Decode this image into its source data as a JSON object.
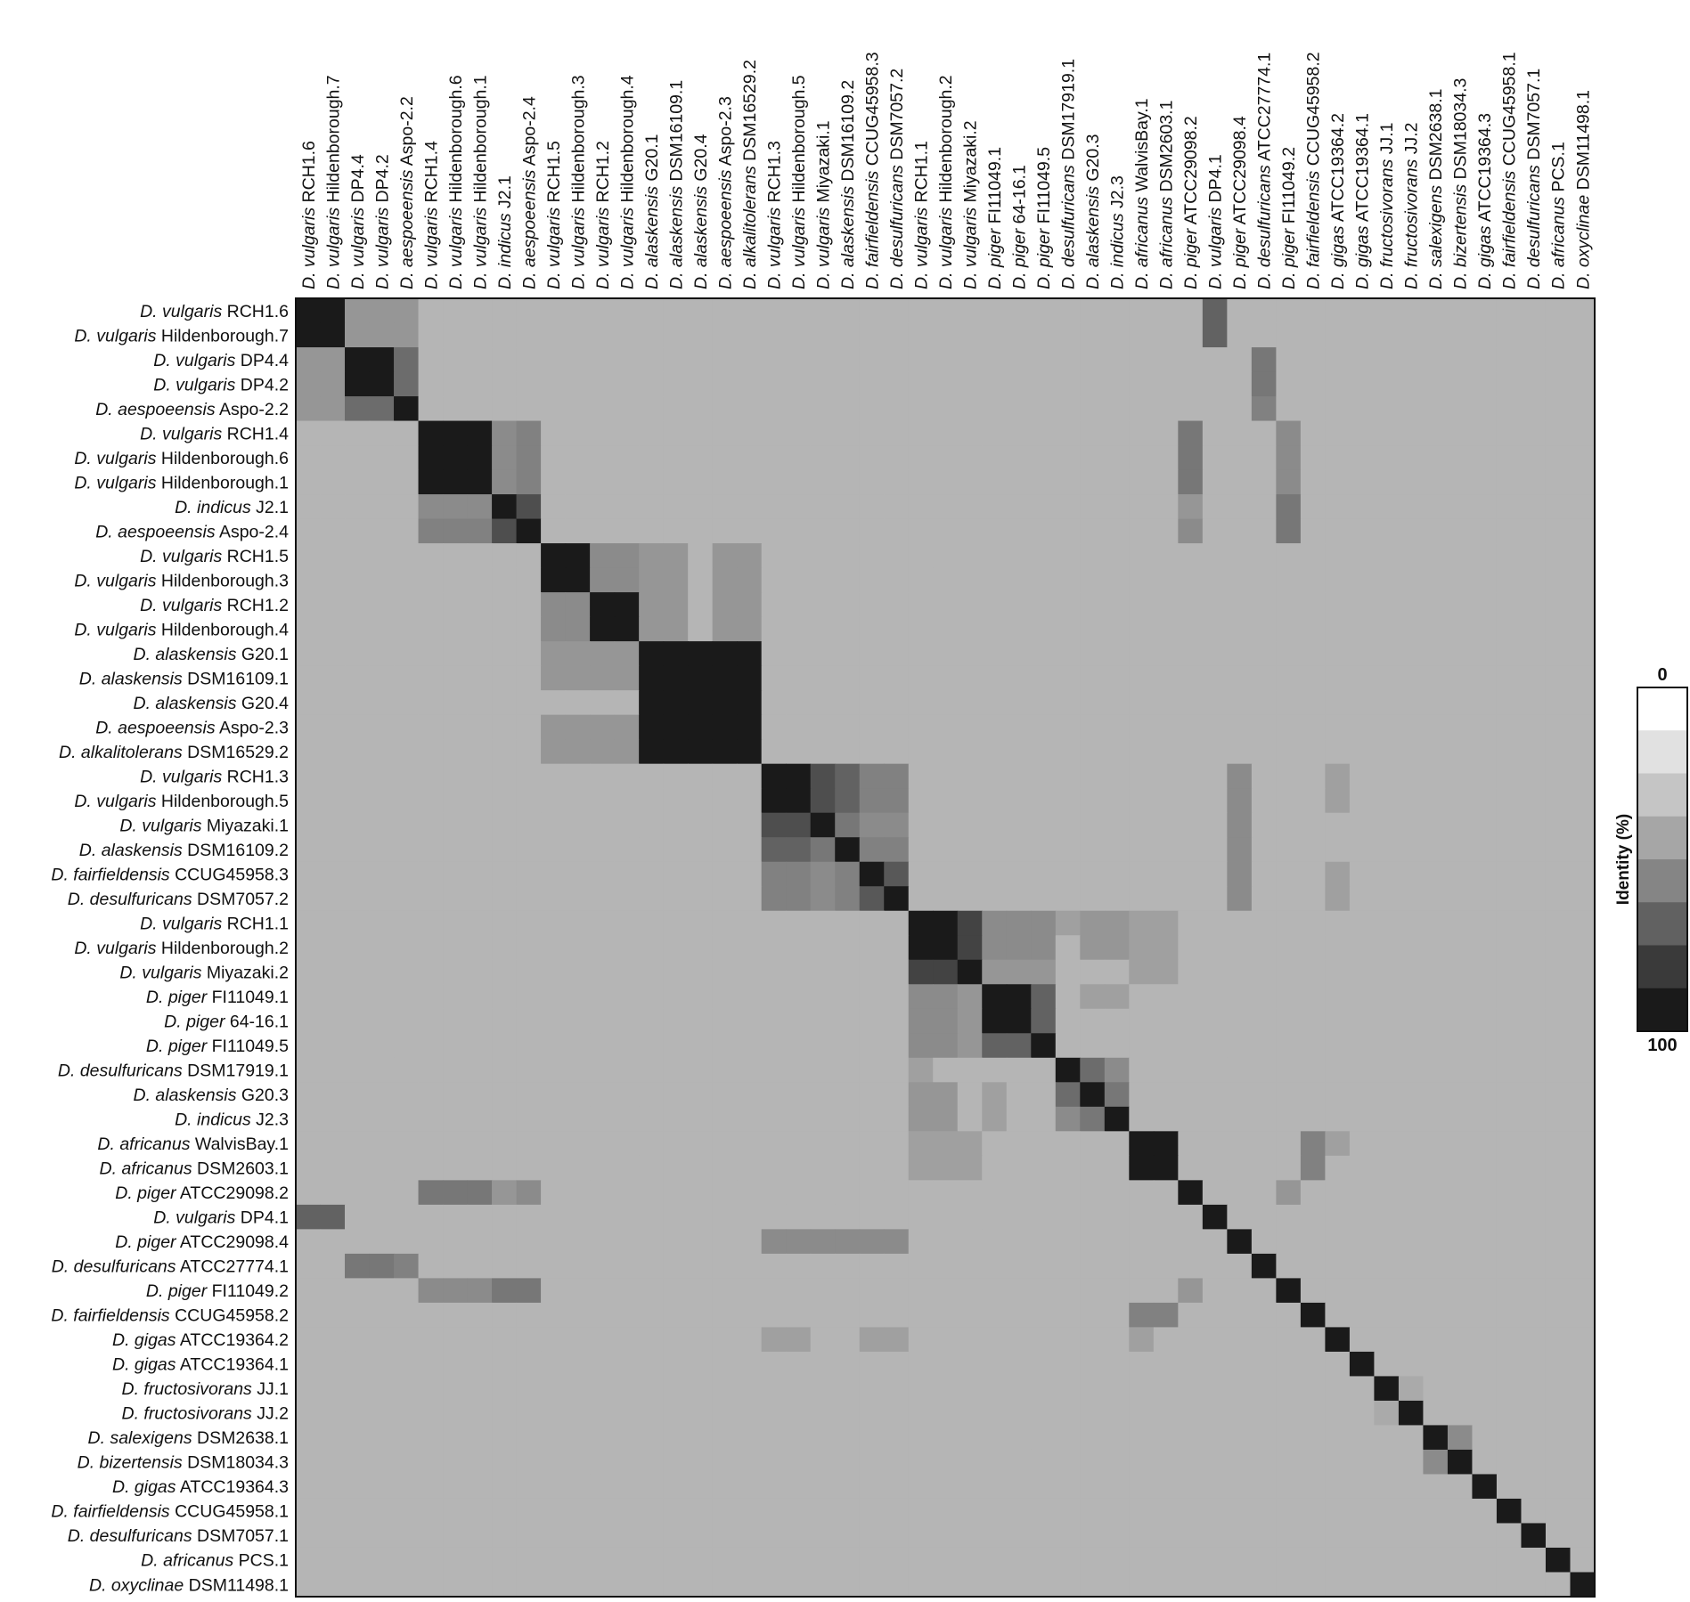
{
  "chart_data": {
    "type": "heatmap",
    "title": "",
    "xlabel": "",
    "ylabel": "",
    "labels": [
      {
        "genus": "D. vulgaris",
        "strain": "RCH1.6"
      },
      {
        "genus": "D. vulgaris",
        "strain": "Hildenborough.7"
      },
      {
        "genus": "D. vulgaris",
        "strain": "DP4.4"
      },
      {
        "genus": "D. vulgaris",
        "strain": "DP4.2"
      },
      {
        "genus": "D. aespoeensis",
        "strain": "Aspo-2.2"
      },
      {
        "genus": "D. vulgaris",
        "strain": "RCH1.4"
      },
      {
        "genus": "D. vulgaris",
        "strain": "Hildenborough.6"
      },
      {
        "genus": "D. vulgaris",
        "strain": "Hildenborough.1"
      },
      {
        "genus": "D. indicus",
        "strain": "J2.1"
      },
      {
        "genus": "D. aespoeensis",
        "strain": "Aspo-2.4"
      },
      {
        "genus": "D. vulgaris",
        "strain": "RCH1.5"
      },
      {
        "genus": "D. vulgaris",
        "strain": "Hildenborough.3"
      },
      {
        "genus": "D. vulgaris",
        "strain": "RCH1.2"
      },
      {
        "genus": "D. vulgaris",
        "strain": "Hildenborough.4"
      },
      {
        "genus": "D. alaskensis",
        "strain": "G20.1"
      },
      {
        "genus": "D. alaskensis",
        "strain": "DSM16109.1"
      },
      {
        "genus": "D. alaskensis",
        "strain": "G20.4"
      },
      {
        "genus": "D. aespoeensis",
        "strain": "Aspo-2.3"
      },
      {
        "genus": "D. alkalitolerans",
        "strain": "DSM16529.2"
      },
      {
        "genus": "D. vulgaris",
        "strain": "RCH1.3"
      },
      {
        "genus": "D. vulgaris",
        "strain": "Hildenborough.5"
      },
      {
        "genus": "D. vulgaris",
        "strain": "Miyazaki.1"
      },
      {
        "genus": "D. alaskensis",
        "strain": "DSM16109.2"
      },
      {
        "genus": "D. fairfieldensis",
        "strain": "CCUG45958.3"
      },
      {
        "genus": "D. desulfuricans",
        "strain": "DSM7057.2"
      },
      {
        "genus": "D. vulgaris",
        "strain": "RCH1.1"
      },
      {
        "genus": "D. vulgaris",
        "strain": "Hildenborough.2"
      },
      {
        "genus": "D. vulgaris",
        "strain": "Miyazaki.2"
      },
      {
        "genus": "D. piger",
        "strain": "FI11049.1"
      },
      {
        "genus": "D. piger",
        "strain": "64-16.1"
      },
      {
        "genus": "D. piger",
        "strain": "FI11049.5"
      },
      {
        "genus": "D. desulfuricans",
        "strain": "DSM17919.1"
      },
      {
        "genus": "D. alaskensis",
        "strain": "G20.3"
      },
      {
        "genus": "D. indicus",
        "strain": "J2.3"
      },
      {
        "genus": "D. africanus",
        "strain": "WalvisBay.1"
      },
      {
        "genus": "D. africanus",
        "strain": "DSM2603.1"
      },
      {
        "genus": "D. piger",
        "strain": "ATCC29098.2"
      },
      {
        "genus": "D. vulgaris",
        "strain": "DP4.1"
      },
      {
        "genus": "D. piger",
        "strain": "ATCC29098.4"
      },
      {
        "genus": "D. desulfuricans",
        "strain": "ATCC27774.1"
      },
      {
        "genus": "D. piger",
        "strain": "FI11049.2"
      },
      {
        "genus": "D. fairfieldensis",
        "strain": "CCUG45958.2"
      },
      {
        "genus": "D. gigas",
        "strain": "ATCC19364.2"
      },
      {
        "genus": "D. gigas",
        "strain": "ATCC19364.1"
      },
      {
        "genus": "D. fructosivorans",
        "strain": "JJ.1"
      },
      {
        "genus": "D. fructosivorans",
        "strain": "JJ.2"
      },
      {
        "genus": "D. salexigens",
        "strain": "DSM2638.1"
      },
      {
        "genus": "D. bizertensis",
        "strain": "DSM18034.3"
      },
      {
        "genus": "D. gigas",
        "strain": "ATCC19364.3"
      },
      {
        "genus": "D. fairfieldensis",
        "strain": "CCUG45958.1"
      },
      {
        "genus": "D. desulfuricans",
        "strain": "DSM7057.1"
      },
      {
        "genus": "D. africanus",
        "strain": "PCS.1"
      },
      {
        "genus": "D. oxyclinae",
        "strain": "DSM11498.1"
      }
    ],
    "background_identity": 25,
    "default_block_identity": 30,
    "blocks": [
      {
        "range": [
          0,
          1
        ],
        "value": 100
      },
      {
        "range": [
          2,
          4
        ],
        "value": 100
      },
      {
        "range": [
          5,
          9
        ],
        "value": 100
      },
      {
        "range": [
          10,
          13
        ],
        "value": 100
      },
      {
        "range": [
          14,
          18
        ],
        "value": 100
      },
      {
        "range": [
          19,
          24
        ],
        "value": 100
      },
      {
        "range": [
          25,
          30
        ],
        "value": 100
      },
      {
        "range": [
          31,
          33
        ],
        "value": 100
      },
      {
        "range": [
          34,
          35
        ],
        "value": 100
      }
    ],
    "pairs": [
      [
        0,
        2,
        40
      ],
      [
        0,
        3,
        40
      ],
      [
        0,
        4,
        40
      ],
      [
        1,
        2,
        40
      ],
      [
        1,
        3,
        40
      ],
      [
        1,
        4,
        40
      ],
      [
        2,
        4,
        60
      ],
      [
        3,
        4,
        60
      ],
      [
        5,
        8,
        45
      ],
      [
        5,
        9,
        50
      ],
      [
        6,
        8,
        45
      ],
      [
        6,
        9,
        50
      ],
      [
        7,
        8,
        45
      ],
      [
        7,
        9,
        50
      ],
      [
        8,
        9,
        75
      ],
      [
        10,
        12,
        45
      ],
      [
        10,
        13,
        45
      ],
      [
        11,
        12,
        45
      ],
      [
        11,
        13,
        45
      ],
      [
        10,
        14,
        40
      ],
      [
        10,
        15,
        40
      ],
      [
        11,
        14,
        40
      ],
      [
        11,
        15,
        40
      ],
      [
        12,
        14,
        40
      ],
      [
        12,
        15,
        40
      ],
      [
        13,
        14,
        40
      ],
      [
        13,
        15,
        40
      ],
      [
        10,
        17,
        40
      ],
      [
        10,
        18,
        40
      ],
      [
        11,
        17,
        40
      ],
      [
        11,
        18,
        40
      ],
      [
        12,
        17,
        40
      ],
      [
        12,
        18,
        40
      ],
      [
        13,
        17,
        40
      ],
      [
        13,
        18,
        40
      ],
      [
        19,
        21,
        75
      ],
      [
        19,
        22,
        65
      ],
      [
        20,
        21,
        75
      ],
      [
        20,
        22,
        65
      ],
      [
        21,
        22,
        55
      ],
      [
        19,
        23,
        50
      ],
      [
        19,
        24,
        50
      ],
      [
        20,
        23,
        50
      ],
      [
        20,
        24,
        50
      ],
      [
        21,
        23,
        45
      ],
      [
        21,
        24,
        45
      ],
      [
        22,
        23,
        50
      ],
      [
        22,
        24,
        50
      ],
      [
        23,
        24,
        70
      ],
      [
        25,
        27,
        80
      ],
      [
        26,
        27,
        80
      ],
      [
        25,
        28,
        45
      ],
      [
        25,
        29,
        45
      ],
      [
        25,
        30,
        45
      ],
      [
        26,
        28,
        45
      ],
      [
        26,
        29,
        45
      ],
      [
        26,
        30,
        45
      ],
      [
        27,
        28,
        40
      ],
      [
        27,
        29,
        40
      ],
      [
        27,
        30,
        40
      ],
      [
        28,
        30,
        65
      ],
      [
        29,
        30,
        65
      ],
      [
        25,
        31,
        35
      ],
      [
        25,
        32,
        40
      ],
      [
        25,
        33,
        40
      ],
      [
        26,
        32,
        40
      ],
      [
        26,
        33,
        40
      ],
      [
        28,
        32,
        35
      ],
      [
        28,
        33,
        35
      ],
      [
        25,
        34,
        35
      ],
      [
        25,
        35,
        35
      ],
      [
        26,
        34,
        35
      ],
      [
        26,
        35,
        35
      ],
      [
        27,
        34,
        35
      ],
      [
        27,
        35,
        35
      ],
      [
        31,
        32,
        60
      ],
      [
        31,
        33,
        45
      ],
      [
        32,
        33,
        55
      ],
      [
        0,
        37,
        65
      ],
      [
        1,
        37,
        65
      ],
      [
        2,
        39,
        55
      ],
      [
        3,
        39,
        55
      ],
      [
        4,
        39,
        50
      ],
      [
        5,
        36,
        55
      ],
      [
        6,
        36,
        55
      ],
      [
        7,
        36,
        55
      ],
      [
        8,
        36,
        40
      ],
      [
        9,
        36,
        45
      ],
      [
        5,
        40,
        45
      ],
      [
        6,
        40,
        45
      ],
      [
        7,
        40,
        45
      ],
      [
        8,
        40,
        55
      ],
      [
        9,
        40,
        55
      ],
      [
        19,
        38,
        45
      ],
      [
        20,
        38,
        45
      ],
      [
        21,
        38,
        45
      ],
      [
        22,
        38,
        45
      ],
      [
        23,
        38,
        45
      ],
      [
        24,
        38,
        45
      ],
      [
        19,
        42,
        35
      ],
      [
        20,
        42,
        35
      ],
      [
        23,
        42,
        35
      ],
      [
        24,
        42,
        35
      ],
      [
        34,
        41,
        50
      ],
      [
        35,
        41,
        50
      ],
      [
        34,
        42,
        35
      ],
      [
        36,
        40,
        40
      ],
      [
        46,
        47,
        45
      ],
      [
        44,
        45,
        30
      ]
    ],
    "legend": {
      "label": "Identity (%)",
      "min_label": "0",
      "max_label": "100",
      "levels": [
        0,
        14,
        28,
        42,
        57,
        71,
        85,
        100
      ],
      "colors": [
        "#ffffff",
        "#e1e1e1",
        "#c5c5c5",
        "#a6a6a6",
        "#858585",
        "#616161",
        "#3a3a3a",
        "#1a1a1a"
      ]
    }
  }
}
